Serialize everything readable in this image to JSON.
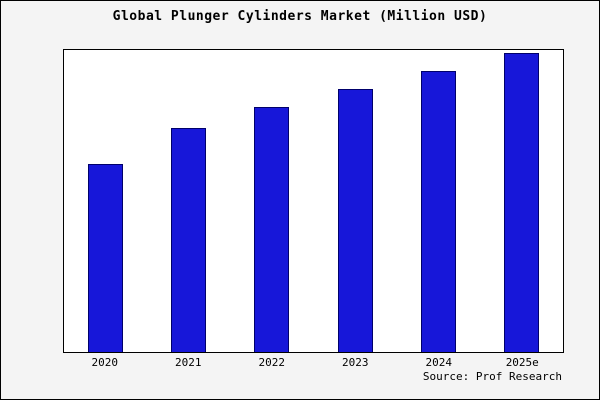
{
  "title": "Global Plunger Cylinders Market (Million USD)",
  "source": "Source: Prof Research",
  "colors": {
    "bar_fill": "#1717d9",
    "bar_border": "#00006b",
    "outer_background": "#f4f4f4",
    "plot_background": "#ffffff",
    "frame_border": "#000000"
  },
  "chart_data": {
    "type": "bar",
    "categories": [
      "2020",
      "2021",
      "2022",
      "2023",
      "2024",
      "2025e"
    ],
    "values": [
      63,
      75,
      82,
      88,
      94,
      100
    ],
    "title": "Global Plunger Cylinders Market (Million USD)",
    "xlabel": "",
    "ylabel": "",
    "ylim": [
      0,
      101
    ],
    "grid": false,
    "legend": false,
    "bar_color": "#1717d9",
    "bar_border_color": "#00006b",
    "annotations": [
      "Source: Prof Research"
    ]
  }
}
